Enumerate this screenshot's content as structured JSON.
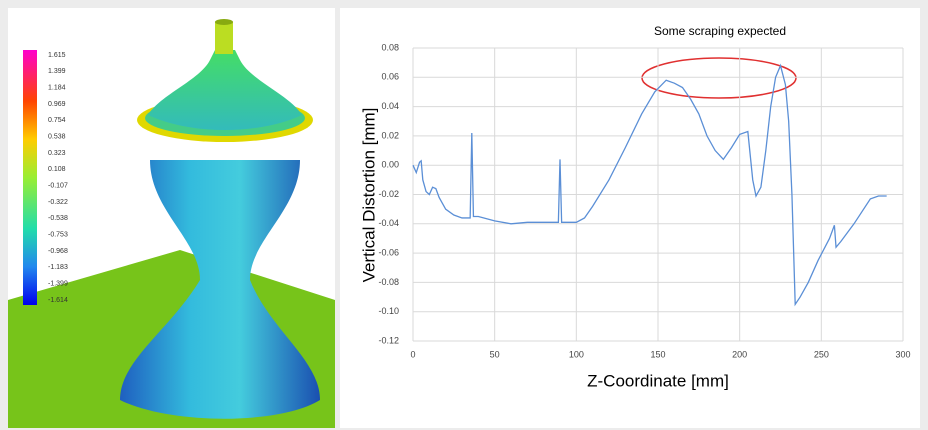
{
  "simulation_legend": {
    "labels": [
      "1.615",
      "1.399",
      "1.184",
      "0.969",
      "0.754",
      "0.538",
      "0.323",
      "0.108",
      "-0.107",
      "-0.322",
      "-0.538",
      "-0.753",
      "-0.968",
      "-1.183",
      "-1.399",
      "-1.614"
    ]
  },
  "chart_data": {
    "type": "line",
    "annotation": "Some scraping expected",
    "x_label": "Z-Coordinate [mm]",
    "y_label": "Vertical Distortion [mm]",
    "xlim": [
      0,
      300
    ],
    "xticks": [
      0,
      50,
      100,
      150,
      200,
      250,
      300
    ],
    "ylim": [
      -0.12,
      0.08
    ],
    "yticks": [
      -0.12,
      {
        "value": -0.1,
        "label": "-0.10"
      },
      -0.08,
      -0.06,
      -0.04,
      -0.02,
      {
        "value": 0,
        "label": "0.00"
      },
      0.02,
      0.04,
      0.06,
      0.08
    ],
    "grid": true,
    "series": [
      {
        "color": "#5b8fd6",
        "x": [
          0,
          2,
          4,
          5,
          6,
          8,
          10,
          12,
          14,
          16,
          20,
          25,
          30,
          35,
          36,
          37,
          40,
          50,
          60,
          70,
          80,
          89,
          90,
          91,
          100,
          105,
          110,
          120,
          130,
          140,
          148,
          155,
          160,
          165,
          170,
          175,
          180,
          185,
          190,
          195,
          200,
          205,
          208,
          210,
          213,
          216,
          219,
          222,
          225,
          228,
          230,
          232,
          234,
          237,
          242,
          248,
          255,
          258,
          259,
          262,
          270,
          280,
          285,
          290
        ],
        "values": [
          0.0,
          -0.005,
          0.002,
          0.003,
          -0.01,
          -0.018,
          -0.02,
          -0.015,
          -0.016,
          -0.022,
          -0.03,
          -0.034,
          -0.036,
          -0.036,
          0.022,
          -0.035,
          -0.035,
          -0.038,
          -0.04,
          -0.039,
          -0.039,
          -0.039,
          0.004,
          -0.039,
          -0.039,
          -0.036,
          -0.028,
          -0.01,
          0.012,
          0.035,
          0.05,
          0.058,
          0.056,
          0.053,
          0.045,
          0.035,
          0.02,
          0.01,
          0.004,
          0.012,
          0.021,
          0.023,
          -0.01,
          -0.021,
          -0.015,
          0.01,
          0.04,
          0.06,
          0.068,
          0.055,
          0.03,
          -0.02,
          -0.095,
          -0.09,
          -0.08,
          -0.065,
          -0.05,
          -0.041,
          -0.056,
          -0.052,
          -0.04,
          -0.023,
          -0.021,
          -0.021
        ]
      }
    ]
  }
}
